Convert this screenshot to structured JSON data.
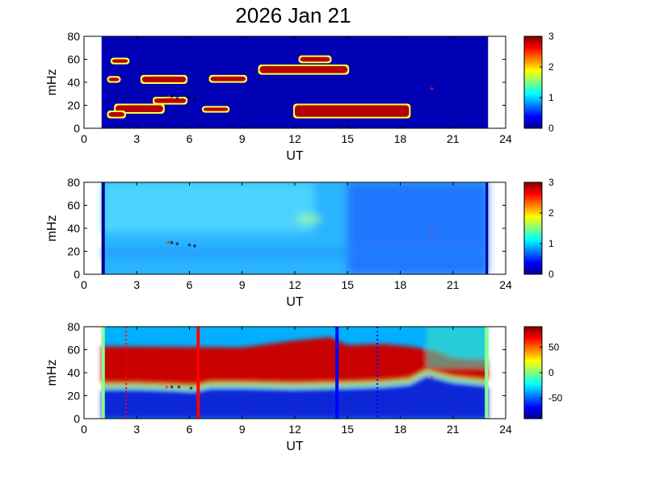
{
  "figure_title": "2026 Jan 21",
  "colors": {
    "frame": "#000000",
    "background": "#ffffff",
    "marker_red": "#ff2020",
    "marker_black": "#000000",
    "line_red": "#ff0000",
    "line_blue": "#0000ff",
    "edge_green": "#8cff8c",
    "dark_blue": "#00008f"
  },
  "chart_data": [
    {
      "type": "heatmap",
      "title": "2026 Jan 21",
      "xlabel": "UT",
      "ylabel": "mHz",
      "xlim": [
        0,
        24
      ],
      "ylim": [
        0,
        80
      ],
      "xticks": [
        "0",
        "3",
        "6",
        "9",
        "12",
        "15",
        "18",
        "21",
        "24"
      ],
      "yticks": [
        "0",
        "20",
        "40",
        "60",
        "80"
      ],
      "data_range_ut": [
        1.0,
        23.0
      ],
      "colorbar": {
        "range": [
          0,
          3
        ],
        "ticks": [
          "0",
          "1",
          "2",
          "3"
        ]
      },
      "high_activity_regions": [
        {
          "ut": [
            10.0,
            15.0
          ],
          "mhz": [
            48,
            54
          ]
        },
        {
          "ut": [
            12.3,
            14.0
          ],
          "mhz": [
            58,
            62
          ]
        },
        {
          "ut": [
            3.3,
            5.8
          ],
          "mhz": [
            40,
            45
          ]
        },
        {
          "ut": [
            7.2,
            9.2
          ],
          "mhz": [
            41,
            45
          ]
        },
        {
          "ut": [
            1.4,
            2.0
          ],
          "mhz": [
            41,
            44
          ]
        },
        {
          "ut": [
            1.8,
            4.5
          ],
          "mhz": [
            14,
            20
          ]
        },
        {
          "ut": [
            1.4,
            2.3
          ],
          "mhz": [
            10,
            14
          ]
        },
        {
          "ut": [
            12.0,
            18.5
          ],
          "mhz": [
            10,
            20
          ]
        },
        {
          "ut": [
            6.8,
            8.2
          ],
          "mhz": [
            15,
            18
          ]
        },
        {
          "ut": [
            1.6,
            2.5
          ],
          "mhz": [
            57,
            60
          ]
        },
        {
          "ut": [
            4.0,
            5.8
          ],
          "mhz": [
            22,
            26
          ]
        }
      ],
      "markers_red": [
        {
          "ut": 4.8,
          "mhz": 26
        },
        {
          "ut": 19.8,
          "mhz": 33
        }
      ],
      "markers_black": [
        {
          "ut": 5.0,
          "mhz": 26
        },
        {
          "ut": 5.3,
          "mhz": 25
        },
        {
          "ut": 6.0,
          "mhz": 25
        },
        {
          "ut": 6.3,
          "mhz": 24
        }
      ]
    },
    {
      "type": "heatmap",
      "xlabel": "UT",
      "ylabel": "mHz",
      "xlim": [
        0,
        24
      ],
      "ylim": [
        0,
        80
      ],
      "xticks": [
        "0",
        "3",
        "6",
        "9",
        "12",
        "15",
        "18",
        "21",
        "24"
      ],
      "yticks": [
        "0",
        "20",
        "40",
        "60",
        "80"
      ],
      "data_range_ut": [
        1.0,
        23.0
      ],
      "colorbar": {
        "range": [
          0,
          3
        ],
        "ticks": [
          "0",
          "1",
          "2",
          "3"
        ]
      },
      "markers_red": [
        {
          "ut": 4.8,
          "mhz": 26
        },
        {
          "ut": 19.8,
          "mhz": 33
        }
      ],
      "markers_black": [
        {
          "ut": 5.0,
          "mhz": 26
        },
        {
          "ut": 5.3,
          "mhz": 25
        },
        {
          "ut": 6.0,
          "mhz": 24
        },
        {
          "ut": 6.3,
          "mhz": 23
        }
      ]
    },
    {
      "type": "heatmap",
      "xlabel": "UT",
      "ylabel": "mHz",
      "xlim": [
        0,
        24
      ],
      "ylim": [
        0,
        80
      ],
      "xticks": [
        "0",
        "3",
        "6",
        "9",
        "12",
        "15",
        "18",
        "21",
        "24"
      ],
      "yticks": [
        "0",
        "20",
        "40",
        "60",
        "80"
      ],
      "data_range_ut": [
        1.0,
        23.0
      ],
      "colorbar": {
        "range": [
          -90,
          90
        ],
        "ticks": [
          "50",
          "0",
          "-50"
        ]
      },
      "band_boundary_mhz": [
        {
          "ut": 1.0,
          "mhz": 28
        },
        {
          "ut": 3.0,
          "mhz": 28
        },
        {
          "ut": 5.0,
          "mhz": 27
        },
        {
          "ut": 6.3,
          "mhz": 26
        },
        {
          "ut": 7.2,
          "mhz": 29
        },
        {
          "ut": 9.0,
          "mhz": 29
        },
        {
          "ut": 12.0,
          "mhz": 28
        },
        {
          "ut": 15.0,
          "mhz": 29
        },
        {
          "ut": 17.0,
          "mhz": 30
        },
        {
          "ut": 18.5,
          "mhz": 32
        },
        {
          "ut": 19.5,
          "mhz": 40
        },
        {
          "ut": 21.0,
          "mhz": 34
        },
        {
          "ut": 23.0,
          "mhz": 31
        }
      ],
      "vertical_lines": [
        {
          "ut": 6.5,
          "color": "red",
          "style": "solid"
        },
        {
          "ut": 14.4,
          "color": "blue",
          "style": "solid"
        },
        {
          "ut": 2.4,
          "color": "red",
          "style": "dotted"
        },
        {
          "ut": 16.7,
          "color": "blue",
          "style": "dotted"
        }
      ],
      "markers_red": [
        {
          "ut": 4.7,
          "mhz": 26
        },
        {
          "ut": 19.8,
          "mhz": 34
        }
      ],
      "markers_black": [
        {
          "ut": 5.0,
          "mhz": 26
        },
        {
          "ut": 5.4,
          "mhz": 26
        },
        {
          "ut": 6.1,
          "mhz": 25
        }
      ]
    }
  ]
}
